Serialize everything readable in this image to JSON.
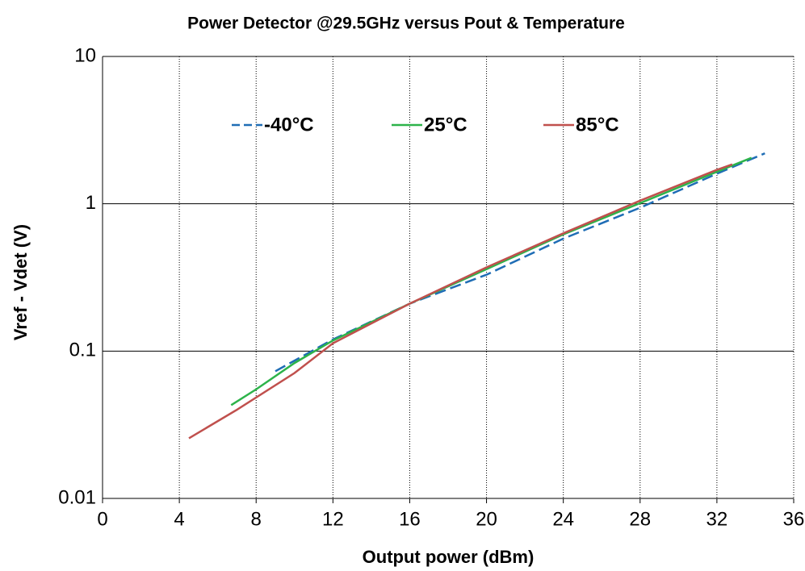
{
  "chart_data": {
    "type": "line",
    "title": "Power Detector @29.5GHz versus Pout & Temperature",
    "xlabel": "Output power (dBm)",
    "ylabel": "Vref - Vdet  (V)",
    "xlim": [
      0,
      36
    ],
    "xticks": [
      0,
      4,
      8,
      12,
      16,
      20,
      24,
      28,
      32,
      36
    ],
    "ylim": [
      0.01,
      10
    ],
    "yticks": [
      0.01,
      0.1,
      1,
      10
    ],
    "ylog": true,
    "grid": true,
    "series": [
      {
        "name": "-40°C",
        "color": "#1f6db5",
        "dash": true,
        "x": [
          9,
          12,
          16,
          20,
          24,
          28,
          32,
          34.5
        ],
        "values": [
          0.073,
          0.12,
          0.21,
          0.33,
          0.58,
          0.94,
          1.6,
          2.2
        ]
      },
      {
        "name": "25°C",
        "color": "#2db34a",
        "dash": false,
        "x": [
          6.7,
          8,
          10,
          12,
          16,
          20,
          24,
          28,
          32,
          33.8
        ],
        "values": [
          0.043,
          0.055,
          0.083,
          0.118,
          0.21,
          0.36,
          0.62,
          1.01,
          1.65,
          2.05
        ]
      },
      {
        "name": "85°C",
        "color": "#c0504d",
        "dash": false,
        "x": [
          4.5,
          7,
          10,
          12,
          16,
          20,
          24,
          28,
          32,
          32.8
        ],
        "values": [
          0.0256,
          0.04,
          0.071,
          0.113,
          0.21,
          0.37,
          0.63,
          1.05,
          1.7,
          1.85
        ]
      }
    ]
  }
}
